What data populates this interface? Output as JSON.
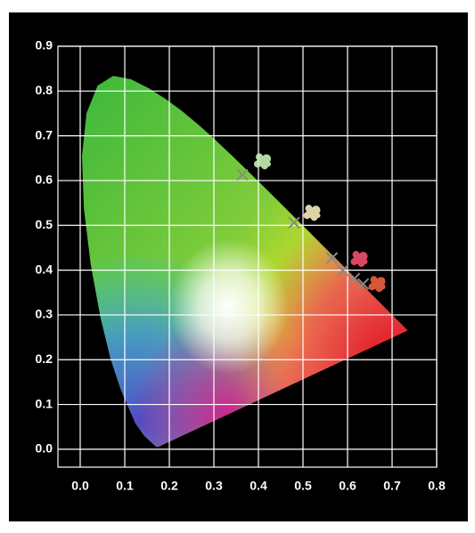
{
  "chart_data": {
    "type": "scatter",
    "xlim": [
      -0.05,
      0.8
    ],
    "ylim": [
      -0.04,
      0.9
    ],
    "xticks": [
      {
        "value": 0,
        "label": "0.0"
      },
      0.1,
      0.2,
      0.3,
      0.4,
      0.5,
      0.6,
      0.7,
      0.8
    ],
    "yticks": [
      {
        "value": 0,
        "label": "0.0"
      },
      0.1,
      0.2,
      0.3,
      0.4,
      0.5,
      0.6,
      0.7,
      0.8,
      0.9
    ],
    "grid": true,
    "grid_color": "#ffffff",
    "series": [
      {
        "marker": "x",
        "color": "#8a8a8a",
        "x": [
          0.364,
          0.48,
          0.565,
          0.589,
          0.615,
          0.635
        ],
        "values": [
          0.613,
          0.506,
          0.427,
          0.399,
          0.381,
          0.369
        ]
      },
      {
        "marker": "blob",
        "colors": [
          "#c8f0b4",
          "#f4eab8",
          "#f0506e",
          "#f0603c"
        ],
        "x": [
          0.408,
          0.519,
          0.625,
          0.665
        ],
        "values": [
          0.643,
          0.528,
          0.425,
          0.369
        ]
      }
    ]
  }
}
